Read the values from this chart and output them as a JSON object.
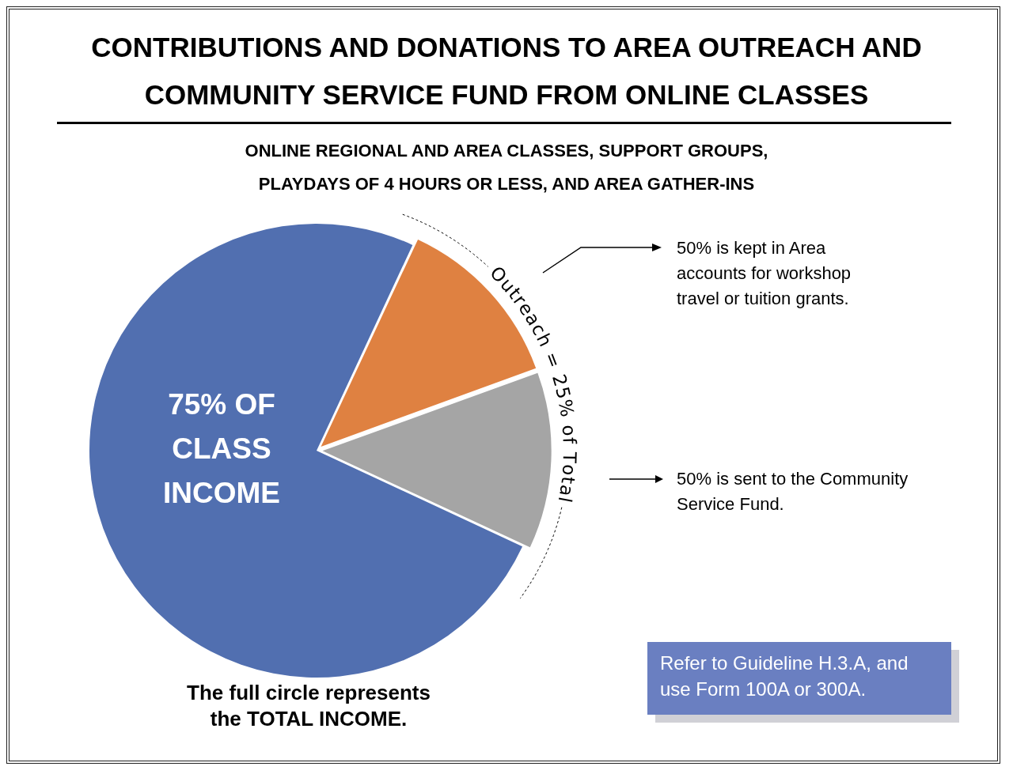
{
  "chart_data": {
    "type": "pie",
    "title": "CONTRIBUTIONS AND DONATIONS TO AREA OUTREACH AND COMMUNITY SERVICE FUND FROM ONLINE CLASSES",
    "subtitle": "ONLINE REGIONAL AND AREA CLASSES, SUPPORT GROUPS, PLAYDAYS OF 4 HOURS OR LESS, AND AREA GATHER-INS",
    "categories": [
      "75% OF CLASS INCOME",
      null,
      null
    ],
    "values": [
      75,
      12.5,
      12.5
    ],
    "colors": [
      "#516fb0",
      "#df8141",
      "#a5a5a5"
    ],
    "annotations": [
      "Outreach = 25% of Total",
      "50% is kept in Area accounts for workshop travel or tuition grants.",
      "50% is sent to the Community Service Fund.",
      "The full circle represents the TOTAL INCOME.",
      "Refer to Guideline H.3.A, and use Form 100A or 300A."
    ],
    "legend": false
  }
}
